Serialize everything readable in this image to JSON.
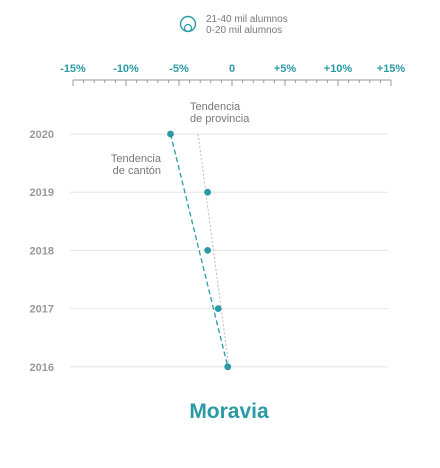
{
  "colors": {
    "accent": "#2b9aa5",
    "province_line": "#bbbbbb",
    "axis": "#999999",
    "grid": "#e6e6e6",
    "year_text": "#999999",
    "annotation_text": "#777777"
  },
  "legend": {
    "items": [
      {
        "label": "21-40 mil alumnos",
        "icon": "circle-outline-large-icon"
      },
      {
        "label": "0-20 mil alumnos",
        "icon": "circle-outline-small-icon"
      }
    ]
  },
  "chart_data": {
    "type": "scatter",
    "title": "Moravia",
    "xlabel": "",
    "ylabel": "",
    "xlim": [
      -15,
      15
    ],
    "x_ticks": [
      -15,
      -10,
      -5,
      0,
      5,
      10,
      15
    ],
    "x_tick_labels": [
      "-15%",
      "-10%",
      "-5%",
      "0",
      "+5%",
      "+10%",
      "+15%"
    ],
    "categories": [
      "2020",
      "2019",
      "2018",
      "2017",
      "2016"
    ],
    "series": [
      {
        "values": [
          {
            "year": "2020",
            "x": -5.8
          },
          {
            "year": "2019",
            "x": -2.3
          },
          {
            "year": "2018",
            "x": -2.3
          },
          {
            "year": "2017",
            "x": -1.3
          },
          {
            "year": "2016",
            "x": -0.4
          }
        ]
      }
    ],
    "trend_lines": [
      {
        "label": "Tendencia de cantón",
        "from": {
          "year": "2020",
          "x": -5.8
        },
        "to": {
          "year": "2016",
          "x": -0.4
        },
        "style": "dashed"
      },
      {
        "label": "Tendencia de provincia",
        "from": {
          "year": "2020",
          "x": -3.2
        },
        "to": {
          "year": "2016",
          "x": -0.3
        },
        "style": "dotted"
      }
    ],
    "annotations": [
      {
        "lines": [
          "Tendencia",
          "de provincia"
        ]
      },
      {
        "lines": [
          "Tendencia",
          "de cantón"
        ]
      }
    ],
    "grid": true
  }
}
